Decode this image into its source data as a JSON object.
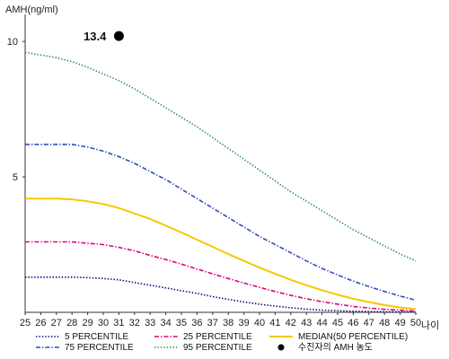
{
  "chart_data": {
    "type": "line",
    "title": "",
    "ylabel": "AMH(ng/ml)",
    "xlabel": "나이",
    "xlim": [
      25,
      50
    ],
    "ylim": [
      0,
      11
    ],
    "y_ticks": [
      5,
      10
    ],
    "x": [
      25,
      26,
      27,
      28,
      29,
      30,
      31,
      32,
      33,
      34,
      35,
      36,
      37,
      38,
      39,
      40,
      41,
      42,
      43,
      44,
      45,
      46,
      47,
      48,
      49,
      50
    ],
    "grid": false,
    "legend_position": "bottom",
    "series": [
      {
        "name": "5 PERCENTILE",
        "color": "#000080",
        "dash": "dotted",
        "values": [
          1.3,
          1.3,
          1.3,
          1.3,
          1.28,
          1.25,
          1.2,
          1.1,
          1.0,
          0.9,
          0.8,
          0.7,
          0.58,
          0.48,
          0.38,
          0.3,
          0.23,
          0.17,
          0.12,
          0.08,
          0.06,
          0.04,
          0.03,
          0.02,
          0.02,
          0.01
        ]
      },
      {
        "name": "25 PERCENTILE",
        "color": "#e0007a",
        "dash": "dashdot",
        "values": [
          2.6,
          2.6,
          2.6,
          2.6,
          2.55,
          2.5,
          2.4,
          2.27,
          2.1,
          1.95,
          1.78,
          1.6,
          1.42,
          1.25,
          1.08,
          0.92,
          0.77,
          0.63,
          0.5,
          0.39,
          0.3,
          0.22,
          0.16,
          0.11,
          0.08,
          0.05
        ]
      },
      {
        "name": "MEDIAN(50 PERCENTILE)",
        "color": "#f5c800",
        "dash": "solid",
        "values": [
          4.2,
          4.2,
          4.2,
          4.17,
          4.1,
          4.0,
          3.85,
          3.65,
          3.45,
          3.2,
          2.95,
          2.68,
          2.42,
          2.15,
          1.9,
          1.65,
          1.42,
          1.2,
          1.0,
          0.82,
          0.65,
          0.5,
          0.38,
          0.27,
          0.18,
          0.12
        ]
      },
      {
        "name": "75 PERCENTILE",
        "color": "#2e4fb8",
        "dash": "dashdot",
        "values": [
          6.2,
          6.2,
          6.2,
          6.2,
          6.1,
          5.95,
          5.75,
          5.5,
          5.2,
          4.9,
          4.55,
          4.2,
          3.85,
          3.5,
          3.15,
          2.8,
          2.5,
          2.2,
          1.9,
          1.62,
          1.38,
          1.15,
          0.95,
          0.77,
          0.6,
          0.45
        ]
      },
      {
        "name": "95 PERCENTILE",
        "color": "#2e8b57",
        "dash": "dotted",
        "values": [
          9.6,
          9.5,
          9.4,
          9.25,
          9.05,
          8.8,
          8.55,
          8.25,
          7.9,
          7.55,
          7.2,
          6.85,
          6.45,
          6.05,
          5.65,
          5.25,
          4.85,
          4.45,
          4.1,
          3.75,
          3.4,
          3.05,
          2.75,
          2.45,
          2.15,
          1.9
        ]
      }
    ],
    "points": [
      {
        "name": "수진자의 AMH 농도",
        "x": 31,
        "y": 10.2,
        "label": "13.4",
        "color": "#000000"
      }
    ],
    "legend_order": [
      "5 PERCENTILE",
      "25 PERCENTILE",
      "MEDIAN(50 PERCENTILE)",
      "75 PERCENTILE",
      "95 PERCENTILE",
      "수진자의 AMH 농도"
    ]
  }
}
